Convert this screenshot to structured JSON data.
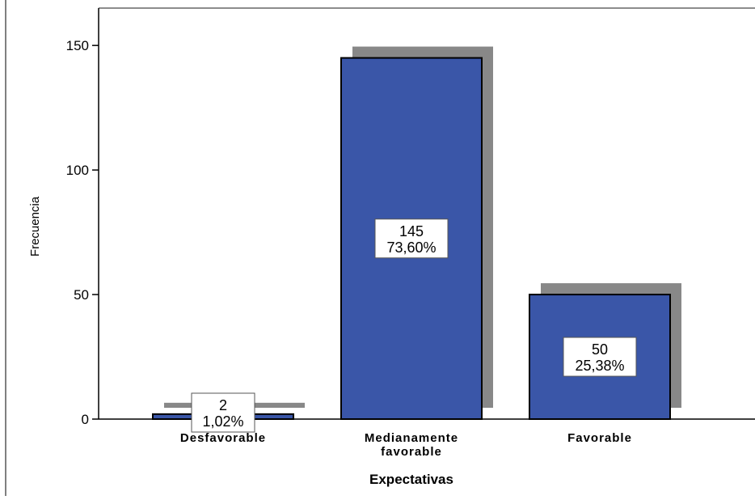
{
  "chart_data": {
    "type": "bar",
    "title": "",
    "xlabel": "Expectativas",
    "ylabel": "Frecuencia",
    "categories": [
      [
        "Desfavorable"
      ],
      [
        "Medianamente",
        "favorable"
      ],
      [
        "Favorable"
      ]
    ],
    "values": [
      2,
      145,
      50
    ],
    "data_labels": [
      {
        "count": "2",
        "percent": "1,02%"
      },
      {
        "count": "145",
        "percent": "73,60%"
      },
      {
        "count": "50",
        "percent": "25,38%"
      }
    ],
    "yticks": [
      0,
      50,
      100,
      150
    ],
    "ylim": [
      0,
      165
    ],
    "grid": false,
    "legend": "none",
    "bar_style": "3d-shadow"
  },
  "colors": {
    "bar_fill": "#3a56a8",
    "bar_edge": "#000000",
    "shadow": "#888888",
    "axis": "#000000",
    "frame": "#8c8c8c",
    "label_box": "#ffffff"
  }
}
